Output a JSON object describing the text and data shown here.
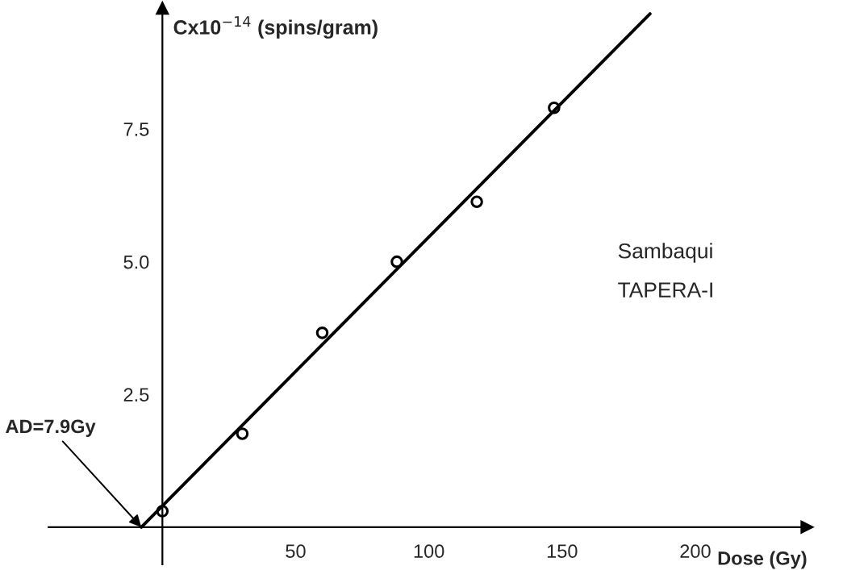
{
  "chart_data": {
    "type": "scatter",
    "xlabel": "Dose (Gy)",
    "ylabel": "Cx10$^{−14}$ (spins/gram)",
    "series": [
      {
        "color": "#000000",
        "marker": "circle",
        "x": [
          0,
          30,
          60,
          88,
          118,
          147
        ],
        "values": [
          0.3,
          1.76,
          3.66,
          5.0,
          6.13,
          7.9
        ]
      },
      {
        "type": "line",
        "color": "#000000",
        "line_style": "solid",
        "x": [
          -7.9,
          183
        ],
        "values": [
          0,
          9.67
        ]
      }
    ],
    "annotations": [
      {
        "text": "AD=7.9Gy",
        "x": -7.9,
        "y": 0
      },
      "Sambaqui",
      "TAPERA-I"
    ],
    "xlim": [
      -42.7,
      242
    ],
    "ylim": [
      -0.7,
      9.78
    ],
    "xticks": [
      50,
      100,
      150,
      200
    ],
    "yticks": [
      2.5,
      {
        "value": 5,
        "label": "5.0"
      },
      7.5
    ],
    "grid": false,
    "legend": false
  }
}
